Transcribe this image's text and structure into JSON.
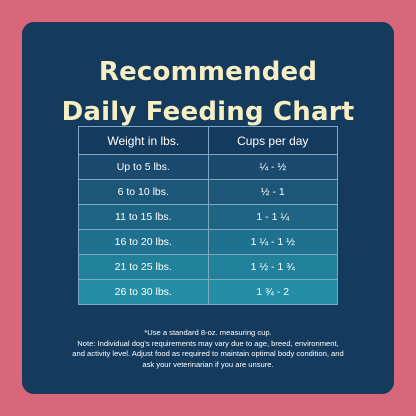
{
  "title": {
    "line1": "Recommended",
    "line2": "Daily Feeding Chart"
  },
  "table": {
    "headers": [
      "Weight in lbs.",
      "Cups per day"
    ],
    "rows": [
      {
        "weight": "Up to 5 lbs.",
        "cups": "¼ - ½",
        "color": "#1a4a6e"
      },
      {
        "weight": "6 to 10 lbs.",
        "cups": "½ - 1",
        "color": "#1c5779"
      },
      {
        "weight": "11 to 15 lbs.",
        "cups": "1 - 1 ¼",
        "color": "#1e6484"
      },
      {
        "weight": "16 to 20 lbs.",
        "cups": "1 ¼ - 1 ½",
        "color": "#1f728f"
      },
      {
        "weight": "21 to 25 lbs.",
        "cups": "1 ½ - 1 ¾",
        "color": "#21809a"
      },
      {
        "weight": "26 to 30 lbs.",
        "cups": "1 ¾ - 2",
        "color": "#238ea5"
      }
    ]
  },
  "notes": [
    "*Use a standard 8-oz. measuring cup.",
    "Note: Individual dog's requirements may vary due to age, breed, environment,",
    "and activity level. Adjust food as required to maintain optimal body condition, and",
    "ask your veterinarian if you are unsure."
  ],
  "colors": {
    "background": "#d9677a",
    "card": "#143a5e",
    "title": "#f7efc4"
  }
}
